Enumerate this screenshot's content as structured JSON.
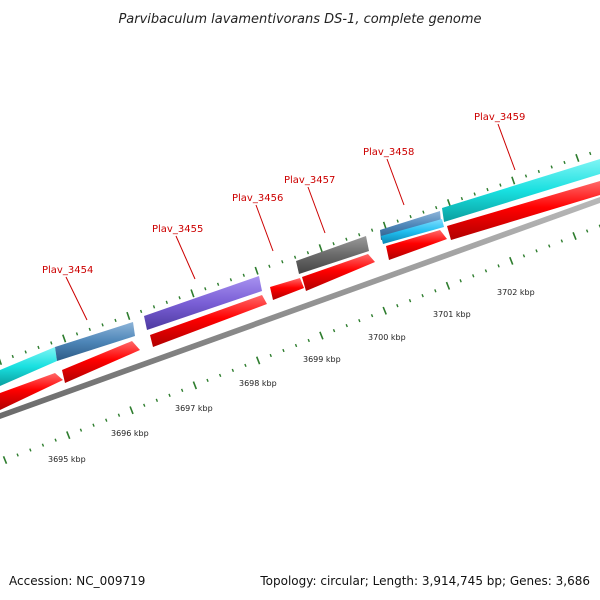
{
  "title": "Parvibaculum lavamentivorans DS-1, complete genome",
  "footer": {
    "accession": "Accession: NC_009719",
    "summary": "Topology: circular; Length: 3,914,745 bp; Genes: 3,686"
  },
  "genes": [
    {
      "label": "Plav_3454"
    },
    {
      "label": "Plav_3455"
    },
    {
      "label": "Plav_3456"
    },
    {
      "label": "Plav_3457"
    },
    {
      "label": "Plav_3458"
    },
    {
      "label": "Plav_3459"
    }
  ],
  "kbp_labels": [
    "3695 kbp",
    "3696 kbp",
    "3697 kbp",
    "3698 kbp",
    "3699 kbp",
    "3700 kbp",
    "3701 kbp",
    "3702 kbp"
  ],
  "colors": {
    "cds": "#ff0000",
    "backbone": "#8c8c8c",
    "tick": "#2e7d2e",
    "gene_label": "#cc0000",
    "cyan": "#19e0e0",
    "steel_blue": "#4e86b8",
    "purple": "#7a5fd6",
    "gray": "#6a6a6a",
    "light_blue": "#21bff0"
  }
}
